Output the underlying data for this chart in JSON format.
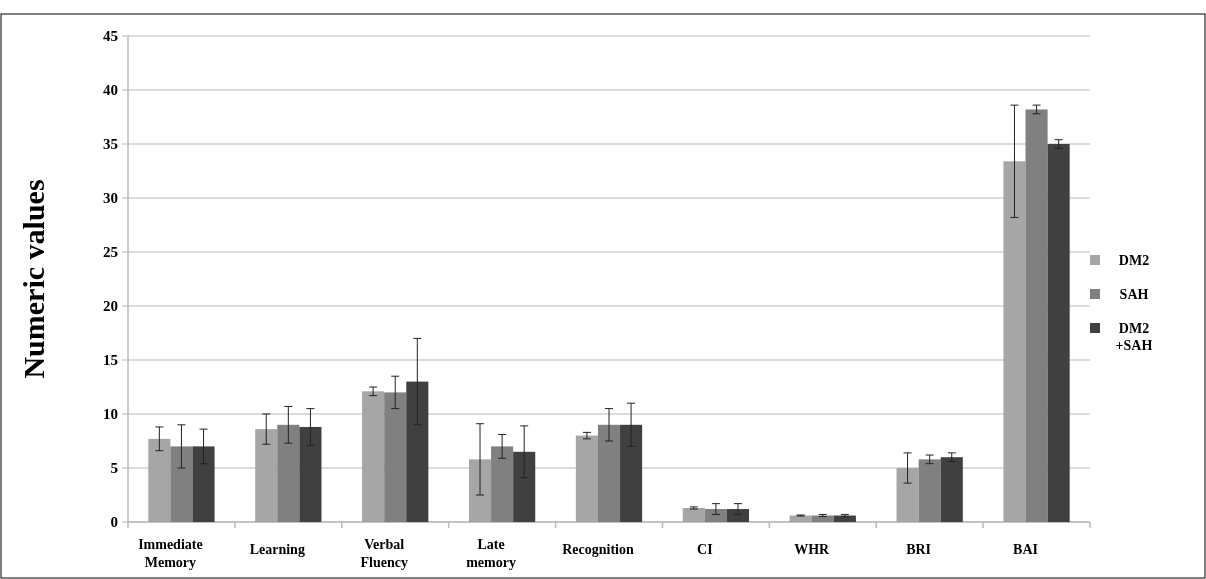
{
  "chart_data": {
    "type": "bar",
    "ylabel": "Numeric values",
    "categories": [
      "Immediate Memory",
      "Learning",
      "Verbal Fluency",
      "Late memory",
      "Recognition",
      "CI",
      "WHR",
      "BRI",
      "BAI"
    ],
    "series": [
      {
        "name": "DM2",
        "color": "#a6a6a6",
        "values": [
          7.7,
          8.6,
          12.1,
          5.8,
          8.0,
          1.3,
          0.6,
          5.0,
          33.4
        ],
        "errors": [
          1.1,
          1.4,
          0.4,
          3.3,
          0.3,
          0.1,
          0.05,
          1.4,
          5.2
        ]
      },
      {
        "name": "SAH",
        "color": "#808080",
        "values": [
          7.0,
          9.0,
          12.0,
          7.0,
          9.0,
          1.2,
          0.6,
          5.8,
          38.2
        ],
        "errors": [
          2.0,
          1.7,
          1.5,
          1.1,
          1.5,
          0.5,
          0.1,
          0.4,
          0.4
        ]
      },
      {
        "name": "DM2\n+SAH",
        "color": "#404040",
        "values": [
          7.0,
          8.8,
          13.0,
          6.5,
          9.0,
          1.2,
          0.6,
          6.0,
          35.0
        ],
        "errors": [
          1.6,
          1.7,
          4.0,
          2.4,
          2.0,
          0.5,
          0.1,
          0.4,
          0.4
        ]
      }
    ],
    "ylim": [
      0,
      45
    ],
    "yticks": [
      0,
      5,
      10,
      15,
      20,
      25,
      30,
      35,
      40,
      45
    ],
    "grid": "y",
    "legend": "right"
  }
}
